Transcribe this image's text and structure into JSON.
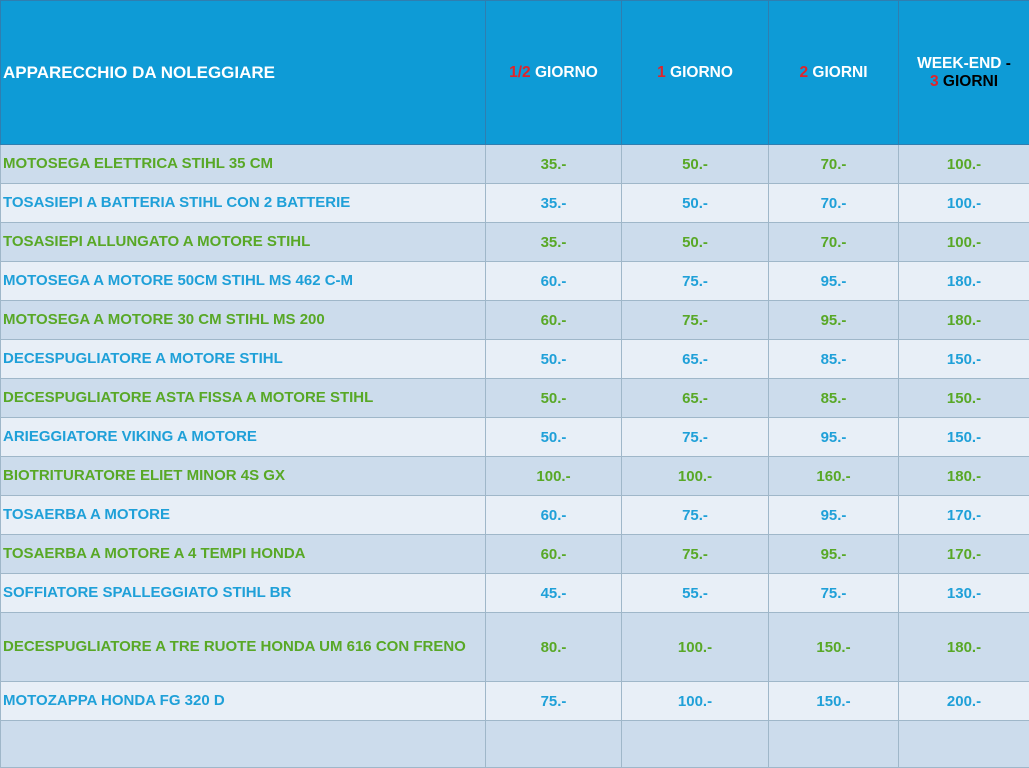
{
  "header": {
    "item": "APPARECCHIO DA NOLEGGIARE",
    "half_day_num": "1/2",
    "half_day_word": "GIORNO",
    "one_day_num": "1",
    "one_day_word": "GIORNO",
    "two_days_num": "2",
    "two_days_word": "GIORNI",
    "weekend_word": "WEEK-END",
    "weekend_dash": "-",
    "weekend_num": "3",
    "weekend_days": "GIORNI"
  },
  "rows": [
    {
      "name": "MOTOSEGA ELETTRICA STIHL 35 CM",
      "half": "35.-",
      "one": "50.-",
      "two": "70.-",
      "weekend": "100.-"
    },
    {
      "name": "TOSASIEPI A BATTERIA STIHL CON 2 BATTERIE",
      "half": "35.-",
      "one": "50.-",
      "two": "70.-",
      "weekend": "100.-"
    },
    {
      "name": "TOSASIEPI ALLUNGATO A MOTORE STIHL",
      "half": "35.-",
      "one": "50.-",
      "two": "70.-",
      "weekend": "100.-"
    },
    {
      "name": "MOTOSEGA A MOTORE 50CM STIHL MS 462 C-M",
      "half": "60.-",
      "one": "75.-",
      "two": "95.-",
      "weekend": "180.-"
    },
    {
      "name": "MOTOSEGA A MOTORE 30 CM STIHL MS 200",
      "half": "60.-",
      "one": "75.-",
      "two": "95.-",
      "weekend": "180.-"
    },
    {
      "name": "DECESPUGLIATORE A MOTORE STIHL",
      "half": "50.-",
      "one": "65.-",
      "two": "85.-",
      "weekend": "150.-"
    },
    {
      "name": "DECESPUGLIATORE ASTA FISSA A MOTORE STIHL",
      "half": "50.-",
      "one": "65.-",
      "two": "85.-",
      "weekend": "150.-"
    },
    {
      "name": "ARIEGGIATORE VIKING A MOTORE",
      "half": "50.-",
      "one": "75.-",
      "two": "95.-",
      "weekend": "150.-"
    },
    {
      "name": "BIOTRITURATORE ELIET MINOR 4S GX",
      "half": "100.-",
      "one": "100.-",
      "two": "160.-",
      "weekend": "180.-"
    },
    {
      "name": "TOSAERBA A MOTORE",
      "half": "60.-",
      "one": "75.-",
      "two": "95.-",
      "weekend": "170.-"
    },
    {
      "name": "TOSAERBA A MOTORE A 4 TEMPI HONDA",
      "half": "60.-",
      "one": "75.-",
      "two": "95.-",
      "weekend": "170.-"
    },
    {
      "name": "SOFFIATORE SPALLEGGIATO STIHL BR",
      "half": "45.-",
      "one": "55.-",
      "two": "75.-",
      "weekend": "130.-"
    },
    {
      "name": "DECESPUGLIATORE A TRE RUOTE HONDA UM 616 CON FRENO",
      "half": "80.-",
      "one": "100.-",
      "two": "150.-",
      "weekend": "180.-"
    },
    {
      "name": "MOTOZAPPA HONDA FG 320 D",
      "half": "75.-",
      "one": "100.-",
      "two": "150.-",
      "weekend": "200.-"
    }
  ],
  "colors": {
    "header_bg": "#0e9bd6",
    "accent_red": "#e0242a",
    "text_green": "#58a826",
    "text_blue": "#1fa0d8",
    "row_dark": "#ccdcec",
    "row_light": "#e8eff7"
  }
}
